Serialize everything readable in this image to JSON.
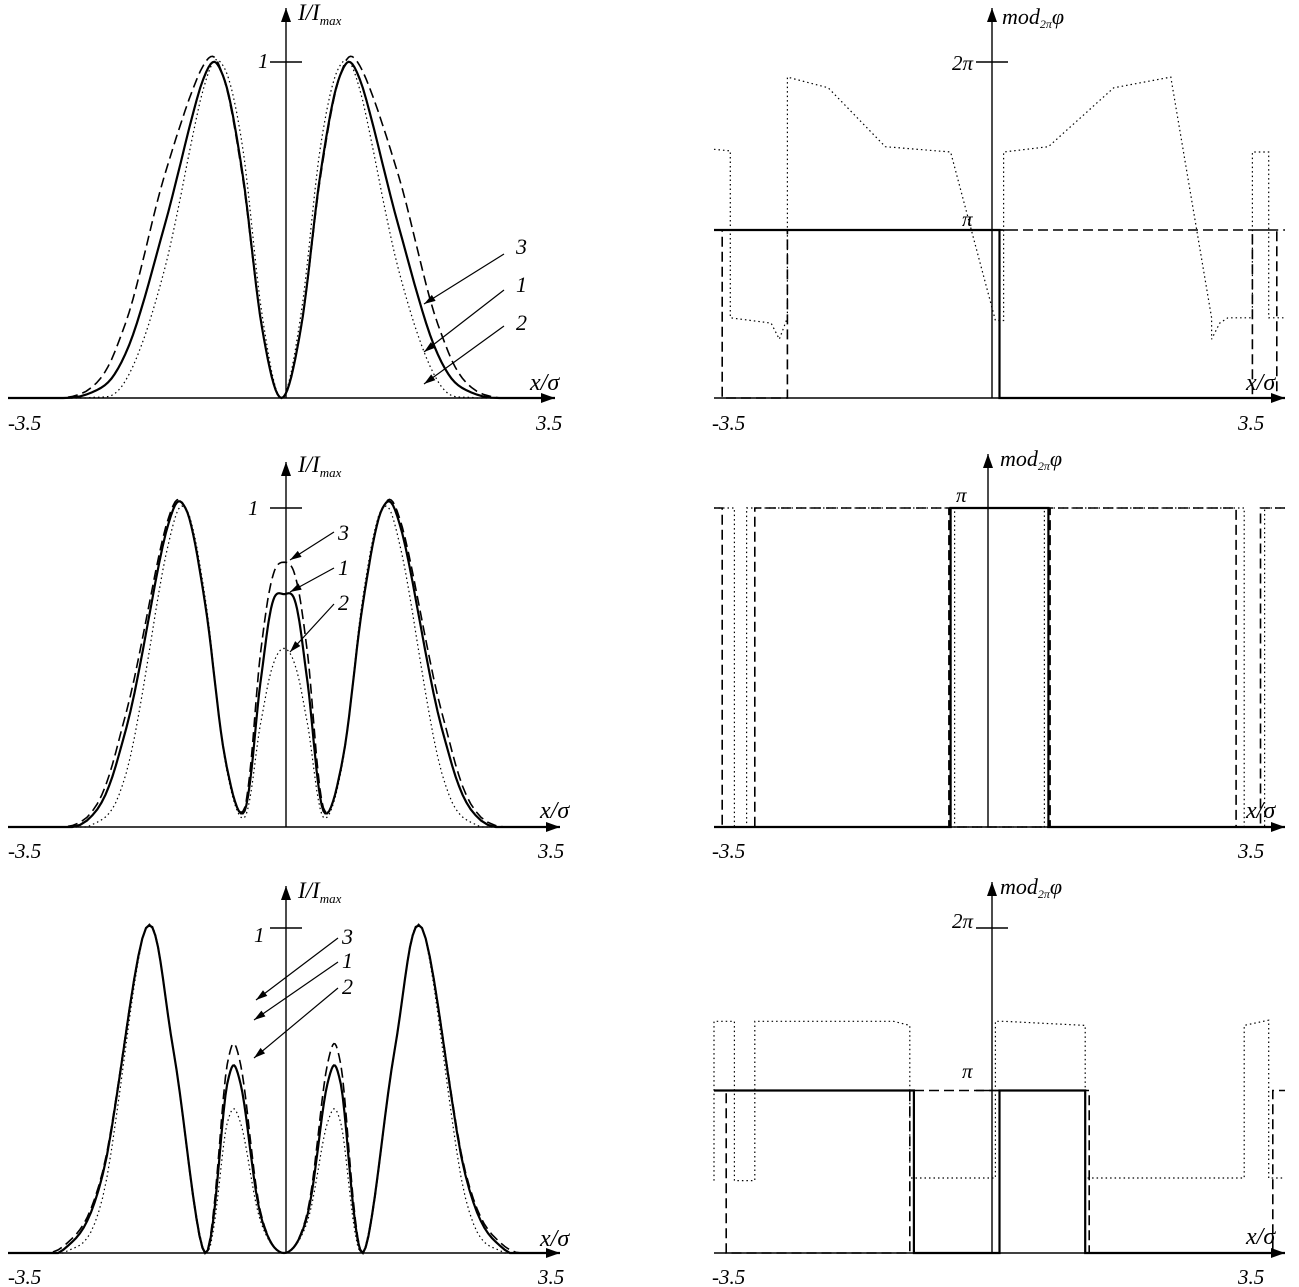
{
  "chart_data": [
    {
      "type": "line",
      "id": "intensity-m1",
      "ylabel_main": "I/I",
      "ylabel_sub": "max",
      "xlabel": "x/σ",
      "xlim": [
        -3.5,
        3.5
      ],
      "ylim": [
        0,
        1
      ],
      "x_tick_labels": [
        "-3.5",
        "3.5"
      ],
      "y_tick_labels": [
        "1"
      ],
      "curve_labels": [
        "3",
        "1",
        "2"
      ],
      "series": [
        {
          "label": "1",
          "style": "solid",
          "x": [
            -3.5,
            -2.5,
            -2.0,
            -1.5,
            -1.0,
            -0.75,
            -0.5,
            -0.25,
            0,
            0.25,
            0.5,
            0.75,
            1.0,
            1.5,
            2.0,
            2.5,
            3.5
          ],
          "y": [
            0,
            0.01,
            0.13,
            0.51,
            0.95,
            0.96,
            0.67,
            0.21,
            0,
            0.21,
            0.67,
            0.96,
            0.95,
            0.51,
            0.13,
            0.01,
            0
          ]
        },
        {
          "label": "2",
          "style": "dotted",
          "x": [
            -3.5,
            -2.5,
            -2.0,
            -1.5,
            -1.0,
            -0.75,
            -0.5,
            -0.25,
            0,
            0.25,
            0.5,
            0.75,
            1.0,
            1.5,
            2.0,
            2.5,
            3.5
          ],
          "y": [
            0,
            0,
            0.05,
            0.38,
            0.92,
            0.99,
            0.75,
            0.25,
            0,
            0.25,
            0.75,
            0.99,
            0.92,
            0.38,
            0.05,
            0,
            0
          ]
        },
        {
          "label": "3",
          "style": "dashed",
          "x": [
            -3.5,
            -2.5,
            -2.0,
            -1.5,
            -1.0,
            -0.75,
            -0.5,
            -0.25,
            0,
            0.25,
            0.5,
            0.75,
            1.0,
            1.5,
            2.0,
            2.5,
            3.5
          ],
          "y": [
            0,
            0.02,
            0.22,
            0.66,
            0.99,
            0.96,
            0.66,
            0.21,
            0,
            0.21,
            0.66,
            0.96,
            0.99,
            0.66,
            0.22,
            0.02,
            0
          ]
        }
      ]
    },
    {
      "type": "line",
      "id": "phase-m1",
      "ylabel_main": "mod",
      "ylabel_sub": "2π",
      "ylabel_suffix": "φ",
      "xlabel": "x/σ",
      "xlim": [
        -3.5,
        3.5
      ],
      "ylim": [
        0,
        6.2832
      ],
      "x_tick_labels": [
        "-3.5",
        "3.5"
      ],
      "y_tick_labels": [
        "π",
        "2π"
      ],
      "series": [
        {
          "label": "1",
          "style": "solid",
          "x": [
            -3.5,
            0,
            0,
            3.5
          ],
          "y": [
            3.1416,
            3.1416,
            0,
            0
          ]
        },
        {
          "label": "3",
          "style": "dashed",
          "x": [
            -3.5,
            -3.4,
            -3.4,
            -2.6,
            -2.6,
            3.4,
            3.4,
            3.1,
            3.1,
            3.5
          ],
          "y": [
            3.1416,
            3.1416,
            0,
            0,
            3.1416,
            3.1416,
            0,
            0,
            3.1416,
            3.1416
          ]
        },
        {
          "label": "2",
          "style": "dotted",
          "x": [
            -3.5,
            -3.3,
            -3.3,
            -2.8,
            -2.7,
            -2.6,
            -2.6,
            -2.1,
            -1.4,
            -0.6,
            -0.05,
            0.05,
            0.05,
            0.6,
            1.4,
            2.1,
            2.6,
            2.6,
            2.7,
            2.8,
            3.1,
            3.1,
            3.3,
            3.3,
            3.5
          ],
          "y": [
            4.65,
            4.62,
            1.5,
            1.4,
            1.1,
            1.5,
            6.0,
            5.8,
            4.7,
            4.6,
            1.45,
            1.45,
            4.6,
            4.7,
            5.8,
            6.0,
            1.5,
            1.1,
            1.4,
            1.5,
            1.5,
            4.6,
            4.6,
            1.5,
            1.5
          ]
        }
      ]
    },
    {
      "type": "line",
      "id": "intensity-m2",
      "ylabel_main": "I/I",
      "ylabel_sub": "max",
      "xlabel": "x/σ",
      "xlim": [
        -3.5,
        3.5
      ],
      "ylim": [
        0,
        1
      ],
      "x_tick_labels": [
        "-3.5",
        "3.5"
      ],
      "y_tick_labels": [
        "1"
      ],
      "curve_labels": [
        "3",
        "1",
        "2"
      ],
      "series": [
        {
          "label": "1",
          "style": "solid",
          "x": [
            -3.5,
            -2.5,
            -2.0,
            -1.5,
            -1.25,
            -1.0,
            -0.75,
            -0.5,
            -0.3,
            -0.15,
            0,
            0.15,
            0.3,
            0.5,
            0.75,
            1.0,
            1.25,
            1.5,
            2.0,
            2.5,
            3.5
          ],
          "y": [
            0,
            0.02,
            0.31,
            0.92,
            1.0,
            0.7,
            0.22,
            0.05,
            0.45,
            0.7,
            0.73,
            0.7,
            0.45,
            0.05,
            0.22,
            0.7,
            1.0,
            0.92,
            0.31,
            0.02,
            0
          ]
        },
        {
          "label": "2",
          "style": "dotted",
          "x": [
            -3.5,
            -2.5,
            -2.0,
            -1.5,
            -1.25,
            -1.0,
            -0.75,
            -0.5,
            -0.3,
            -0.15,
            0,
            0.15,
            0.3,
            0.5,
            0.75,
            1.0,
            1.25,
            1.5,
            2.0,
            2.5,
            3.5
          ],
          "y": [
            0,
            0.0,
            0.17,
            0.85,
            1.0,
            0.72,
            0.21,
            0.03,
            0.32,
            0.5,
            0.56,
            0.5,
            0.32,
            0.03,
            0.21,
            0.72,
            1.0,
            0.85,
            0.17,
            0.0,
            0
          ]
        },
        {
          "label": "3",
          "style": "dashed",
          "x": [
            -3.5,
            -2.5,
            -2.0,
            -1.5,
            -1.25,
            -1.0,
            -0.75,
            -0.5,
            -0.3,
            -0.15,
            0,
            0.15,
            0.3,
            0.5,
            0.75,
            1.0,
            1.25,
            1.5,
            2.0,
            2.5,
            3.5
          ],
          "y": [
            0,
            0.03,
            0.36,
            0.94,
            1.0,
            0.7,
            0.22,
            0.06,
            0.54,
            0.78,
            0.83,
            0.78,
            0.54,
            0.06,
            0.22,
            0.7,
            1.0,
            0.94,
            0.36,
            0.03,
            0
          ]
        }
      ]
    },
    {
      "type": "line",
      "id": "phase-m2",
      "ylabel_main": "mod",
      "ylabel_sub": "2π",
      "ylabel_suffix": "φ",
      "xlabel": "x/σ",
      "xlim": [
        -3.5,
        3.5
      ],
      "ylim": [
        0,
        3.4
      ],
      "x_tick_labels": [
        "-3.5",
        "3.5"
      ],
      "y_tick_labels": [
        "π"
      ],
      "series": [
        {
          "label": "1",
          "style": "solid",
          "x": [
            -3.5,
            -0.6,
            -0.6,
            0.6,
            0.6,
            3.5
          ],
          "y": [
            0,
            0,
            3.1416,
            3.1416,
            0,
            0
          ]
        },
        {
          "label": "3",
          "style": "dashed",
          "x": [
            -3.5,
            -3.4,
            -3.4,
            -3.0,
            -3.0,
            -0.62,
            -0.62,
            0.62,
            0.62,
            2.9,
            2.9,
            3.2,
            3.2,
            3.5
          ],
          "y": [
            3.1416,
            3.1416,
            0,
            0,
            3.1416,
            3.1416,
            0,
            0,
            3.1416,
            3.1416,
            0,
            0,
            3.1416,
            3.1416
          ]
        },
        {
          "label": "2",
          "style": "dotted",
          "x": [
            -3.5,
            -3.25,
            -3.25,
            -3.1,
            -3.1,
            -0.55,
            -0.55,
            0.55,
            0.55,
            3.0,
            3.0,
            3.25,
            3.25,
            3.5
          ],
          "y": [
            3.1416,
            3.1416,
            0,
            0,
            3.1416,
            3.1416,
            0,
            0,
            3.1416,
            3.1416,
            0,
            0,
            3.1416,
            3.1416
          ]
        }
      ]
    },
    {
      "type": "line",
      "id": "intensity-m3",
      "ylabel_main": "I/I",
      "ylabel_sub": "max",
      "xlabel": "x/σ",
      "xlim": [
        -3.5,
        3.5
      ],
      "ylim": [
        0,
        1
      ],
      "x_tick_labels": [
        "-3.5",
        "3.5"
      ],
      "y_tick_labels": [
        "1"
      ],
      "curve_labels": [
        "3",
        "1",
        "2"
      ],
      "series": [
        {
          "label": "1",
          "style": "solid",
          "x": [
            -3.5,
            -2.8,
            -2.3,
            -1.75,
            -1.4,
            -1.0,
            -0.72,
            -0.55,
            -0.3,
            0,
            0.3,
            0.55,
            0.72,
            1.0,
            1.4,
            1.75,
            2.3,
            2.8,
            3.5
          ],
          "y": [
            0,
            0.01,
            0.24,
            1.0,
            0.62,
            0,
            0.52,
            0.52,
            0.12,
            0,
            0.12,
            0.52,
            0.52,
            0,
            0.62,
            1.0,
            0.24,
            0.01,
            0
          ]
        },
        {
          "label": "2",
          "style": "dotted",
          "x": [
            -3.5,
            -2.8,
            -2.3,
            -1.75,
            -1.4,
            -1.0,
            -0.72,
            -0.55,
            -0.3,
            0,
            0.3,
            0.55,
            0.72,
            1.0,
            1.4,
            1.75,
            2.3,
            2.8,
            3.5
          ],
          "y": [
            0,
            0.0,
            0.17,
            1.0,
            0.62,
            0,
            0.4,
            0.4,
            0.1,
            0,
            0.1,
            0.4,
            0.4,
            0,
            0.62,
            1.0,
            0.17,
            0.0,
            0
          ]
        },
        {
          "label": "3",
          "style": "dashed",
          "x": [
            -3.5,
            -2.8,
            -2.3,
            -1.75,
            -1.4,
            -1.0,
            -0.72,
            -0.55,
            -0.3,
            0,
            0.3,
            0.55,
            0.72,
            1.0,
            1.4,
            1.75,
            2.3,
            2.8,
            3.5
          ],
          "y": [
            0,
            0.02,
            0.25,
            1.0,
            0.62,
            0,
            0.58,
            0.58,
            0.13,
            0,
            0.13,
            0.58,
            0.58,
            0,
            0.62,
            1.0,
            0.25,
            0.02,
            0
          ]
        }
      ]
    },
    {
      "type": "line",
      "id": "phase-m3",
      "ylabel_main": "mod",
      "ylabel_sub": "2π",
      "ylabel_suffix": "φ",
      "xlabel": "x/σ",
      "xlim": [
        -3.5,
        3.5
      ],
      "ylim": [
        0,
        6.2832
      ],
      "x_tick_labels": [
        "-3.5",
        "3.5"
      ],
      "y_tick_labels": [
        "π",
        "2π"
      ],
      "series": [
        {
          "label": "1",
          "style": "solid",
          "x": [
            -3.5,
            -1.05,
            -1.05,
            0,
            0,
            1.05,
            1.05,
            3.5
          ],
          "y": [
            3.1416,
            3.1416,
            0,
            0,
            3.1416,
            3.1416,
            0,
            0
          ]
        },
        {
          "label": "3",
          "style": "dashed",
          "x": [
            -3.5,
            -3.35,
            -3.35,
            -1.1,
            -1.1,
            1.1,
            1.1,
            3.35,
            3.35,
            3.5
          ],
          "y": [
            3.1416,
            3.1416,
            0,
            0,
            3.1416,
            3.1416,
            0,
            0,
            3.1416,
            3.1416
          ]
        },
        {
          "label": "2",
          "style": "dotted",
          "x": [
            -3.5,
            -3.5,
            -3.25,
            -3.25,
            -3.0,
            -3.0,
            -1.3,
            -1.1,
            -1.1,
            -0.05,
            -0.05,
            0.05,
            0.05,
            1.05,
            1.05,
            1.3,
            3.0,
            3.0,
            3.3,
            3.3,
            3.5
          ],
          "y": [
            1.4,
            4.48,
            4.48,
            1.4,
            1.4,
            4.48,
            4.48,
            4.4,
            1.45,
            1.45,
            4.48,
            4.48,
            4.48,
            4.4,
            1.45,
            1.45,
            1.45,
            4.4,
            4.5,
            1.45,
            1.45
          ]
        }
      ]
    }
  ]
}
